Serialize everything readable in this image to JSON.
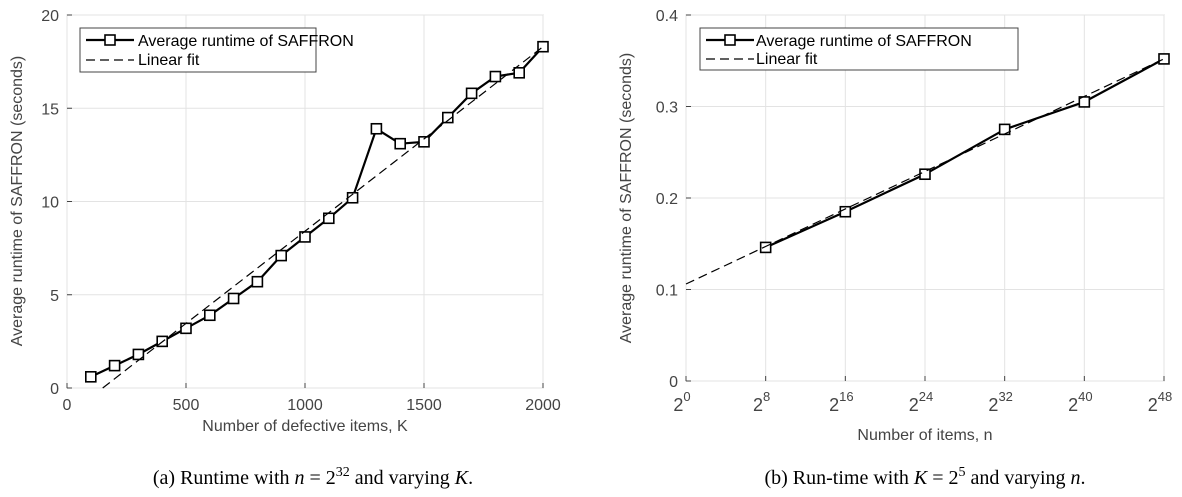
{
  "chart_data": [
    {
      "type": "line",
      "xlabel": "Number of defective items, K",
      "ylabel": "Average runtime of SAFFRON (seconds)",
      "xlim": [
        0,
        2000
      ],
      "ylim": [
        0,
        20
      ],
      "xticks": [
        "0",
        "500",
        "1000",
        "1500",
        "2000"
      ],
      "yticks": [
        "0",
        "5",
        "10",
        "15",
        "20"
      ],
      "legend_position": "top-left",
      "series": [
        {
          "name": "Average runtime of SAFFRON",
          "style": "solid-square-markers",
          "x": [
            100,
            200,
            300,
            400,
            500,
            600,
            700,
            800,
            900,
            1000,
            1100,
            1200,
            1300,
            1400,
            1500,
            1600,
            1700,
            1800,
            1900,
            2000
          ],
          "y": [
            0.6,
            1.2,
            1.8,
            2.5,
            3.2,
            3.9,
            4.8,
            5.7,
            7.1,
            8.1,
            9.1,
            10.2,
            13.9,
            13.1,
            13.2,
            14.5,
            15.8,
            16.7,
            16.9,
            18.3
          ]
        },
        {
          "name": "Linear fit",
          "style": "dashed",
          "x": [
            150,
            2000
          ],
          "y": [
            0,
            18.3
          ]
        }
      ],
      "caption": {
        "pre": "(a) Runtime with ",
        "math1": "n",
        "mid1": " = 2",
        "sup": "32",
        "mid2": " and varying ",
        "math2": "K",
        "post": "."
      }
    },
    {
      "type": "line",
      "xlabel": "Number of items, n",
      "ylabel": "Average runtime of SAFFRON (seconds)",
      "xlim": [
        0,
        48
      ],
      "ylim": [
        0,
        0.4
      ],
      "x_scale": "log2 (exponent shown)",
      "xtick_base": "2",
      "xtick_exponents": [
        "0",
        "8",
        "16",
        "24",
        "32",
        "40",
        "48"
      ],
      "yticks": [
        "0",
        "0.1",
        "0.2",
        "0.3",
        "0.4"
      ],
      "legend_position": "top-left",
      "series": [
        {
          "name": "Average runtime of SAFFRON",
          "style": "solid-square-markers",
          "x": [
            8,
            16,
            24,
            32,
            40,
            48
          ],
          "y": [
            0.146,
            0.185,
            0.226,
            0.275,
            0.305,
            0.352
          ]
        },
        {
          "name": "Linear fit",
          "style": "dashed",
          "x": [
            0,
            48
          ],
          "y": [
            0.106,
            0.352
          ]
        }
      ],
      "caption": {
        "pre": "(b) Run-time with ",
        "math1": "K",
        "mid1": " = 2",
        "sup": "5",
        "mid2": " and varying ",
        "math2": "n",
        "post": "."
      }
    }
  ]
}
